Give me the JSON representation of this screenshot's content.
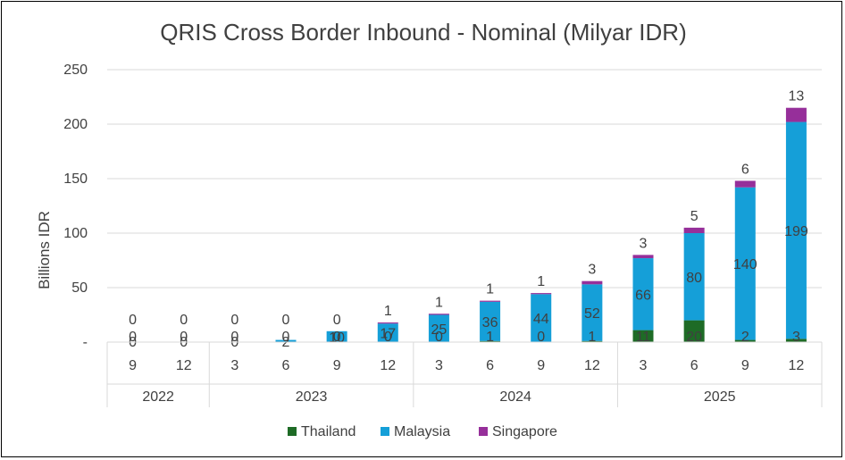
{
  "chart_data": {
    "type": "bar",
    "stacked": true,
    "title": "QRIS Cross Border Inbound - Nominal (Milyar IDR)",
    "xlabel": "",
    "ylabel": "Billions IDR",
    "ylim": [
      0,
      250
    ],
    "yticks": [
      0,
      50,
      100,
      150,
      200,
      250
    ],
    "ytick_labels": [
      "-",
      "50",
      "100",
      "150",
      "200",
      "250"
    ],
    "grid": true,
    "legend_position": "bottom",
    "categories": [
      "9",
      "12",
      "3",
      "6",
      "9",
      "12",
      "3",
      "6",
      "9",
      "12",
      "3",
      "6",
      "9",
      "12"
    ],
    "years": [
      {
        "label": "2022",
        "count": 2
      },
      {
        "label": "2023",
        "count": 4
      },
      {
        "label": "2024",
        "count": 4
      },
      {
        "label": "2025",
        "count": 4
      }
    ],
    "series": [
      {
        "name": "Thailand",
        "color": "#1e6b26",
        "values": [
          0,
          0,
          0,
          0,
          0,
          0,
          0,
          1,
          0,
          1,
          11,
          20,
          2,
          3
        ],
        "labels": [
          "0",
          "0",
          "0",
          "0",
          "0",
          "0",
          "0",
          "1",
          "0",
          "1",
          "11",
          "20",
          "2",
          "3"
        ]
      },
      {
        "name": "Malaysia",
        "color": "#159fd8",
        "values": [
          0,
          0,
          0,
          2,
          10,
          17,
          25,
          36,
          44,
          52,
          66,
          80,
          140,
          199
        ],
        "labels": [
          "0",
          "0",
          "0",
          "2",
          "10",
          "17",
          "25",
          "36",
          "44",
          "52",
          "66",
          "80",
          "140",
          "199"
        ]
      },
      {
        "name": "Singapore",
        "color": "#962f9a",
        "values": [
          0,
          0,
          0,
          0,
          0,
          1,
          1,
          1,
          1,
          3,
          3,
          5,
          6,
          13
        ],
        "labels": [
          "0",
          "0",
          "0",
          "0",
          "0",
          "1",
          "1",
          "1",
          "1",
          "3",
          "3",
          "5",
          "6",
          "13"
        ]
      }
    ]
  }
}
